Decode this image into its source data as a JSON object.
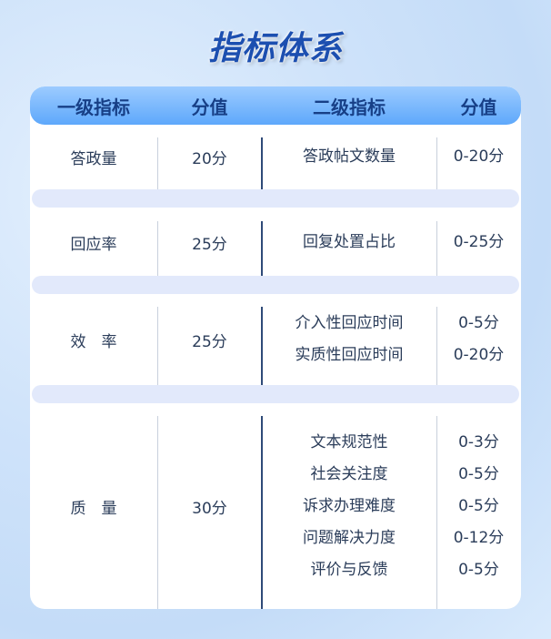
{
  "title": "指标体系",
  "header": [
    "一级指标",
    "分值",
    "二级指标",
    "分值"
  ],
  "rows": [
    {
      "primary": "答政量",
      "score": "20分",
      "secondary": [
        {
          "name": "答政帖文数量",
          "score": "0-20分"
        }
      ]
    },
    {
      "primary": "回应率",
      "score": "25分",
      "secondary": [
        {
          "name": "回复处置占比",
          "score": "0-25分"
        }
      ]
    },
    {
      "primary": "效　率",
      "score": "25分",
      "secondary": [
        {
          "name": "介入性回应时间",
          "score": "0-5分"
        },
        {
          "name": "实质性回应时间",
          "score": "0-20分"
        }
      ]
    },
    {
      "primary": "质　量",
      "score": "30分",
      "secondary": [
        {
          "name": "文本规范性",
          "score": "0-3分"
        },
        {
          "name": "社会关注度",
          "score": "0-5分"
        },
        {
          "name": "诉求办理难度",
          "score": "0-5分"
        },
        {
          "name": "问题解决力度",
          "score": "0-12分"
        },
        {
          "name": "评价与反馈",
          "score": "0-5分"
        }
      ]
    }
  ]
}
